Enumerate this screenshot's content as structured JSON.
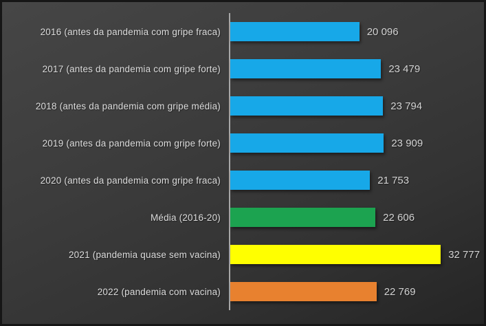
{
  "chart_data": {
    "type": "bar",
    "orientation": "horizontal",
    "title": "",
    "xlabel": "",
    "ylabel": "",
    "categories": [
      "2016 (antes da pandemia com gripe fraca)",
      "2017 (antes da pandemia com gripe forte)",
      "2018 (antes da pandemia com gripe média)",
      "2019 (antes da pandemia com gripe forte)",
      "2020 (antes da pandemia com gripe fraca)",
      "Média (2016-20)",
      "2021 (pandemia quase sem vacina)",
      "2022 (pandemia com vacina)"
    ],
    "values": [
      20096,
      23479,
      23794,
      23909,
      21753,
      22606,
      32777,
      22769
    ],
    "value_labels": [
      "20 096",
      "23 479",
      "23 794",
      "23 909",
      "21 753",
      "22 606",
      "32 777",
      "22 769"
    ],
    "bar_colors": [
      "#17a8e8",
      "#17a8e8",
      "#17a8e8",
      "#17a8e8",
      "#17a8e8",
      "#1ca350",
      "#ffff00",
      "#e8812f"
    ],
    "xlim": [
      0,
      39500
    ],
    "grid": false,
    "legend": "none",
    "axis_line_color": "#a8a8a8",
    "label_color": "#dddddd",
    "background_top": "#464646",
    "background_bottom": "#252525"
  }
}
